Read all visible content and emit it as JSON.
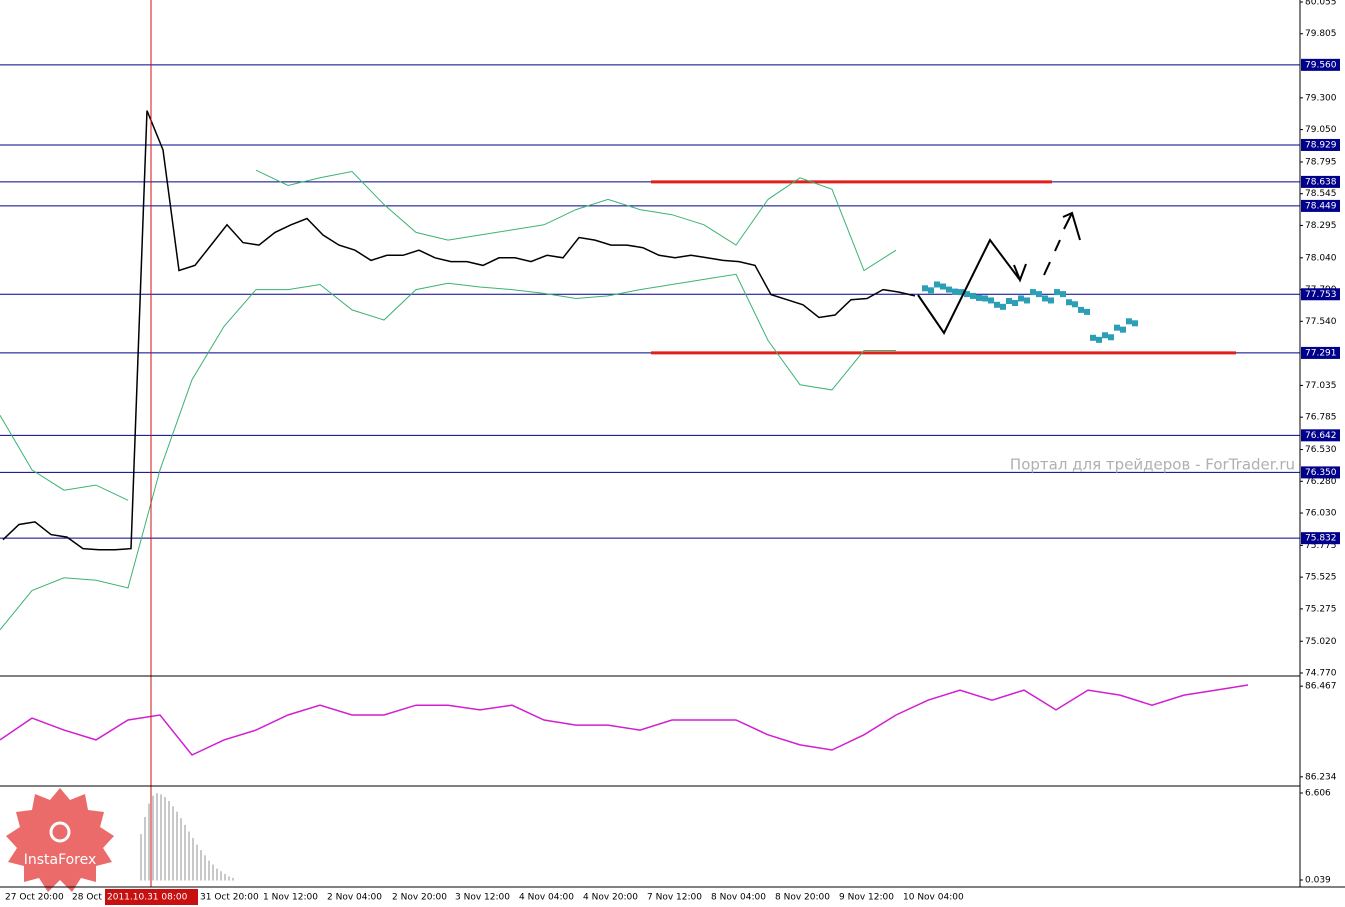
{
  "chart_data": [
    {
      "type": "line",
      "ylim": [
        74.77,
        80.055
      ],
      "yticks": [
        80.055,
        79.805,
        {
          "value": 79.3,
          "label": "79.300"
        },
        {
          "value": 79.05,
          "label": "79.050"
        },
        78.795,
        78.545,
        78.295,
        {
          "value": 78.04,
          "label": "78.040"
        },
        {
          "value": 77.79,
          "label": "77.790"
        },
        {
          "value": 77.54,
          "label": "77.540"
        },
        77.035,
        76.785,
        {
          "value": 76.53,
          "label": "76.530"
        },
        {
          "value": 76.28,
          "label": "76.280"
        },
        {
          "value": 76.03,
          "label": "76.030"
        },
        75.775,
        75.525,
        75.275,
        {
          "value": 75.02,
          "label": "75.020"
        },
        {
          "value": 74.77,
          "label": "74.770"
        }
      ],
      "grid": true,
      "levels": [
        {
          "value": 79.56,
          "label": "79.560"
        },
        78.929,
        78.638,
        78.449,
        77.753,
        77.291,
        76.642,
        {
          "value": 76.35,
          "label": "76.350"
        },
        75.832
      ],
      "level_color": "#00008b",
      "zone_color": "#e0201c",
      "series": [
        {
          "color": "#000000",
          "values": [
            75.82,
            75.94,
            75.96,
            75.86,
            75.84,
            75.75,
            75.74,
            75.74,
            75.75,
            79.2,
            78.89,
            77.94,
            77.98,
            78.14,
            78.3,
            78.16,
            78.14,
            78.24,
            78.3,
            78.35,
            78.22,
            78.14,
            78.1,
            78.02,
            78.06,
            78.06,
            78.1,
            78.04,
            78.01,
            78.01,
            77.98,
            78.04,
            78.04,
            78.01,
            78.06,
            78.04,
            78.2,
            78.18,
            78.14,
            78.14,
            78.12,
            78.06,
            78.04,
            78.06,
            78.04,
            78.02,
            78.01,
            77.98,
            77.75,
            77.71,
            77.67,
            77.57,
            77.59,
            77.71,
            77.72,
            77.79,
            77.77,
            77.74
          ]
        },
        {
          "color": "#3cb371",
          "values": [
            76.8,
            76.37,
            76.21,
            76.25,
            76.13,
            null,
            null,
            null,
            78.73,
            78.61,
            78.67,
            78.72,
            78.46,
            78.24,
            78.18,
            78.22,
            78.26,
            78.3,
            78.42,
            78.5,
            78.42,
            78.38,
            78.3,
            78.14,
            78.5,
            78.67,
            78.58,
            77.94,
            78.1
          ]
        },
        {
          "color": "#3cb371",
          "values": [
            75.11,
            75.42,
            75.52,
            75.5,
            75.44,
            76.37,
            77.08,
            77.5,
            77.79,
            77.79,
            77.83,
            77.63,
            77.55,
            77.79,
            77.84,
            77.81,
            77.79,
            77.76,
            77.72,
            77.74,
            77.79,
            77.83,
            77.87,
            77.91,
            77.39,
            77.04,
            77.0,
            77.31,
            77.31
          ]
        },
        {
          "color": "#2a9fb5",
          "values": [
            77.8,
            77.83,
            77.79,
            77.77,
            77.74,
            77.72,
            77.67,
            77.7,
            77.72,
            77.77,
            77.72,
            77.77,
            77.69,
            77.63,
            77.41,
            77.43,
            77.49,
            77.54
          ]
        }
      ],
      "x_labels": [
        "27 Oct 20:00",
        "28 Oct",
        "2011.10.31 08:00",
        "31 Oct 20:00",
        "1 Nov 12:00",
        "2 Nov 04:00",
        "2 Nov 20:00",
        "3 Nov 12:00",
        "4 Nov 04:00",
        "4 Nov 20:00",
        "7 Nov 12:00",
        "8 Nov 04:00",
        "8 Nov 20:00",
        "9 Nov 12:00",
        "10 Nov 04:00"
      ]
    },
    {
      "type": "line",
      "ylim": [
        86.213,
        86.488
      ],
      "yticks": [
        86.467,
        86.234
      ],
      "series": [
        {
          "color": "#d020d0",
          "values": [
            86.329,
            86.385,
            86.354,
            86.329,
            86.38,
            86.393,
            86.29,
            86.329,
            86.354,
            86.393,
            86.418,
            86.393,
            86.393,
            86.418,
            86.418,
            86.406,
            86.418,
            86.38,
            86.367,
            86.367,
            86.354,
            86.38,
            86.38,
            86.38,
            86.342,
            86.316,
            86.303,
            86.342,
            86.393,
            86.431,
            86.457,
            86.431,
            86.457,
            86.406,
            86.457,
            86.444,
            86.418,
            86.444,
            86.457,
            86.47
          ]
        }
      ]
    },
    {
      "type": "bar",
      "ylim": [
        -0.49,
        7.06
      ],
      "yticks": [
        6.606,
        0.039
      ],
      "color": "#c8c8c8",
      "values": [
        3.5,
        4.8,
        5.8,
        6.4,
        6.6,
        6.5,
        6.3,
        6.0,
        5.6,
        5.2,
        4.7,
        4.2,
        3.7,
        3.2,
        2.7,
        2.3,
        1.9,
        1.5,
        1.2,
        0.9,
        0.7,
        0.5,
        0.3,
        0.2
      ]
    }
  ],
  "watermark": "Портал для трейдеров - ForTrader.ru",
  "logo": "InstaForex"
}
